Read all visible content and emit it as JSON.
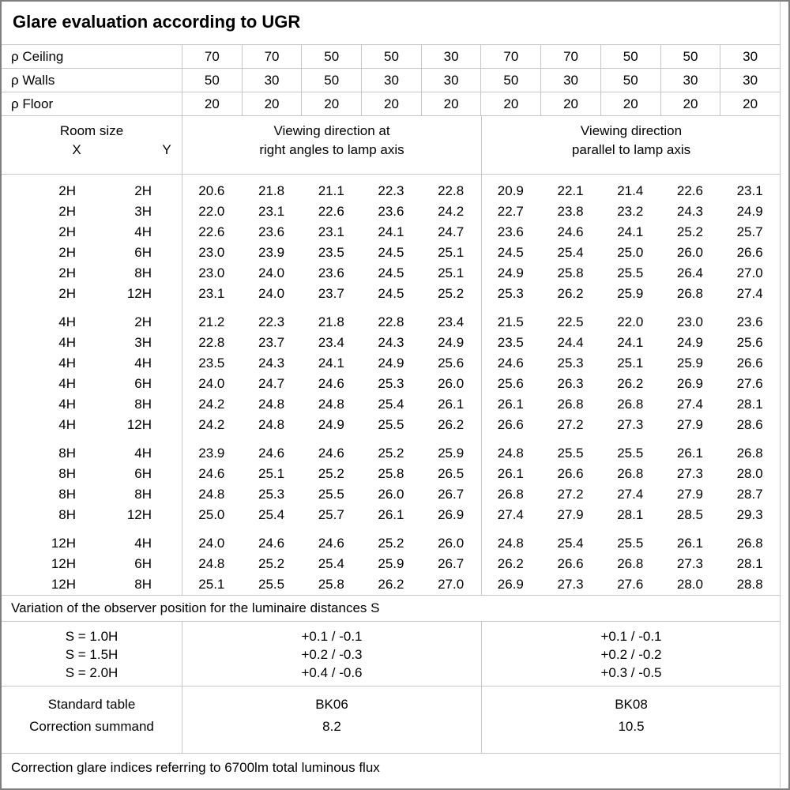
{
  "title": "Glare evaluation according to UGR",
  "reflectance": {
    "rows": [
      {
        "label": "ρ Ceiling",
        "values": [
          "70",
          "70",
          "50",
          "50",
          "30",
          "70",
          "70",
          "50",
          "50",
          "30"
        ]
      },
      {
        "label": "ρ Walls",
        "values": [
          "50",
          "30",
          "50",
          "30",
          "30",
          "50",
          "30",
          "50",
          "30",
          "30"
        ]
      },
      {
        "label": "ρ Floor",
        "values": [
          "20",
          "20",
          "20",
          "20",
          "20",
          "20",
          "20",
          "20",
          "20",
          "20"
        ]
      }
    ]
  },
  "room_header": {
    "room_size": "Room size",
    "x": "X",
    "y": "Y",
    "group1_line1": "Viewing direction at",
    "group1_line2": "right angles to lamp axis",
    "group2_line1": "Viewing direction",
    "group2_line2": "parallel to lamp axis"
  },
  "ugr_table": {
    "blocks": [
      {
        "rows": [
          {
            "x": "2H",
            "y": "2H",
            "values": [
              "20.6",
              "21.8",
              "21.1",
              "22.3",
              "22.8",
              "20.9",
              "22.1",
              "21.4",
              "22.6",
              "23.1"
            ]
          },
          {
            "x": "2H",
            "y": "3H",
            "values": [
              "22.0",
              "23.1",
              "22.6",
              "23.6",
              "24.2",
              "22.7",
              "23.8",
              "23.2",
              "24.3",
              "24.9"
            ]
          },
          {
            "x": "2H",
            "y": "4H",
            "values": [
              "22.6",
              "23.6",
              "23.1",
              "24.1",
              "24.7",
              "23.6",
              "24.6",
              "24.1",
              "25.2",
              "25.7"
            ]
          },
          {
            "x": "2H",
            "y": "6H",
            "values": [
              "23.0",
              "23.9",
              "23.5",
              "24.5",
              "25.1",
              "24.5",
              "25.4",
              "25.0",
              "26.0",
              "26.6"
            ]
          },
          {
            "x": "2H",
            "y": "8H",
            "values": [
              "23.0",
              "24.0",
              "23.6",
              "24.5",
              "25.1",
              "24.9",
              "25.8",
              "25.5",
              "26.4",
              "27.0"
            ]
          },
          {
            "x": "2H",
            "y": "12H",
            "values": [
              "23.1",
              "24.0",
              "23.7",
              "24.5",
              "25.2",
              "25.3",
              "26.2",
              "25.9",
              "26.8",
              "27.4"
            ]
          }
        ]
      },
      {
        "rows": [
          {
            "x": "4H",
            "y": "2H",
            "values": [
              "21.2",
              "22.3",
              "21.8",
              "22.8",
              "23.4",
              "21.5",
              "22.5",
              "22.0",
              "23.0",
              "23.6"
            ]
          },
          {
            "x": "4H",
            "y": "3H",
            "values": [
              "22.8",
              "23.7",
              "23.4",
              "24.3",
              "24.9",
              "23.5",
              "24.4",
              "24.1",
              "24.9",
              "25.6"
            ]
          },
          {
            "x": "4H",
            "y": "4H",
            "values": [
              "23.5",
              "24.3",
              "24.1",
              "24.9",
              "25.6",
              "24.6",
              "25.3",
              "25.1",
              "25.9",
              "26.6"
            ]
          },
          {
            "x": "4H",
            "y": "6H",
            "values": [
              "24.0",
              "24.7",
              "24.6",
              "25.3",
              "26.0",
              "25.6",
              "26.3",
              "26.2",
              "26.9",
              "27.6"
            ]
          },
          {
            "x": "4H",
            "y": "8H",
            "values": [
              "24.2",
              "24.8",
              "24.8",
              "25.4",
              "26.1",
              "26.1",
              "26.8",
              "26.8",
              "27.4",
              "28.1"
            ]
          },
          {
            "x": "4H",
            "y": "12H",
            "values": [
              "24.2",
              "24.8",
              "24.9",
              "25.5",
              "26.2",
              "26.6",
              "27.2",
              "27.3",
              "27.9",
              "28.6"
            ]
          }
        ]
      },
      {
        "rows": [
          {
            "x": "8H",
            "y": "4H",
            "values": [
              "23.9",
              "24.6",
              "24.6",
              "25.2",
              "25.9",
              "24.8",
              "25.5",
              "25.5",
              "26.1",
              "26.8"
            ]
          },
          {
            "x": "8H",
            "y": "6H",
            "values": [
              "24.6",
              "25.1",
              "25.2",
              "25.8",
              "26.5",
              "26.1",
              "26.6",
              "26.8",
              "27.3",
              "28.0"
            ]
          },
          {
            "x": "8H",
            "y": "8H",
            "values": [
              "24.8",
              "25.3",
              "25.5",
              "26.0",
              "26.7",
              "26.8",
              "27.2",
              "27.4",
              "27.9",
              "28.7"
            ]
          },
          {
            "x": "8H",
            "y": "12H",
            "values": [
              "25.0",
              "25.4",
              "25.7",
              "26.1",
              "26.9",
              "27.4",
              "27.9",
              "28.1",
              "28.5",
              "29.3"
            ]
          }
        ]
      },
      {
        "rows": [
          {
            "x": "12H",
            "y": "4H",
            "values": [
              "24.0",
              "24.6",
              "24.6",
              "25.2",
              "26.0",
              "24.8",
              "25.4",
              "25.5",
              "26.1",
              "26.8"
            ]
          },
          {
            "x": "12H",
            "y": "6H",
            "values": [
              "24.8",
              "25.2",
              "25.4",
              "25.9",
              "26.7",
              "26.2",
              "26.6",
              "26.8",
              "27.3",
              "28.1"
            ]
          },
          {
            "x": "12H",
            "y": "8H",
            "values": [
              "25.1",
              "25.5",
              "25.8",
              "26.2",
              "27.0",
              "26.9",
              "27.3",
              "27.6",
              "28.0",
              "28.8"
            ]
          }
        ]
      }
    ]
  },
  "variation_note": "Variation of the observer position for the luminaire distances S",
  "s_block": {
    "rows": [
      {
        "label": "S = 1.0H",
        "right_angles": "+0.1 / -0.1",
        "parallel": "+0.1 / -0.1"
      },
      {
        "label": "S = 1.5H",
        "right_angles": "+0.2 / -0.3",
        "parallel": "+0.2 / -0.2"
      },
      {
        "label": "S = 2.0H",
        "right_angles": "+0.4 / -0.6",
        "parallel": "+0.3 / -0.5"
      }
    ]
  },
  "summary": {
    "standard_table_label": "Standard table",
    "correction_summand_label": "Correction summand",
    "right_angles": {
      "standard_table": "BK06",
      "correction_summand": "8.2"
    },
    "parallel": {
      "standard_table": "BK08",
      "correction_summand": "10.5"
    }
  },
  "footer_note": "Correction glare indices referring to 6700lm total luminous flux"
}
